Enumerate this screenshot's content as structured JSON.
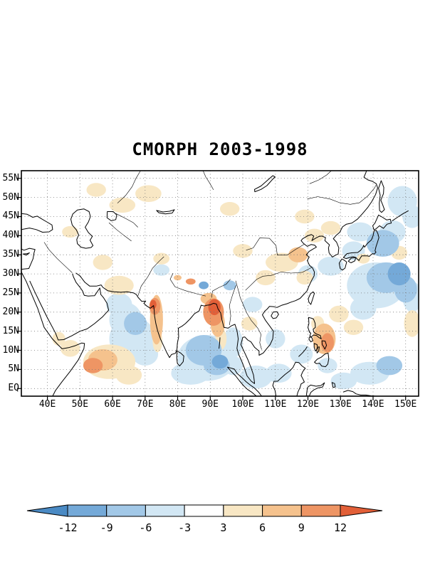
{
  "chart_data": {
    "type": "heatmap",
    "title": "CMORPH 2003-1998",
    "x_axis": {
      "ticks": [
        "40E",
        "50E",
        "60E",
        "70E",
        "80E",
        "90E",
        "100E",
        "110E",
        "120E",
        "130E",
        "140E",
        "150E"
      ],
      "values": [
        40,
        50,
        60,
        70,
        80,
        90,
        100,
        110,
        120,
        130,
        140,
        150
      ],
      "range": [
        32,
        154
      ]
    },
    "y_axis": {
      "ticks": [
        "EQ",
        "5N",
        "10N",
        "15N",
        "20N",
        "25N",
        "30N",
        "35N",
        "40N",
        "45N",
        "50N",
        "55N"
      ],
      "values": [
        0,
        5,
        10,
        15,
        20,
        25,
        30,
        35,
        40,
        45,
        50,
        55
      ],
      "range": [
        -2,
        57
      ]
    },
    "colorbar": {
      "orientation": "horizontal",
      "arrow_ends": true,
      "levels": [
        -12,
        -9,
        -6,
        -3,
        3,
        6,
        9,
        12
      ],
      "labels": [
        "-12",
        "-9",
        "-6",
        "-3",
        "3",
        "6",
        "9",
        "12"
      ],
      "colors": [
        "#4a8ac4",
        "#74a9d8",
        "#a2c8e7",
        "#d2e7f4",
        "#ffffff",
        "#f8e7c4",
        "#f5c28d",
        "#ee9564",
        "#e25f38"
      ]
    },
    "shaded_regions_format": [
      "lon_deg_e",
      "lat_deg_n",
      "rx_deg",
      "ry_deg",
      "anomaly_value"
    ],
    "shaded_regions": [
      [
        66,
        13,
        7,
        6,
        -4
      ],
      [
        64,
        18,
        5,
        4.5,
        -4
      ],
      [
        67,
        17,
        3.5,
        3,
        -7
      ],
      [
        62,
        22,
        4,
        3,
        -4
      ],
      [
        70,
        9,
        4,
        3,
        -4
      ],
      [
        89,
        8,
        9,
        6,
        -4
      ],
      [
        88,
        10,
        5.5,
        4,
        -7
      ],
      [
        92,
        6,
        4,
        2.5,
        -7
      ],
      [
        93,
        7,
        2.5,
        1.8,
        -10
      ],
      [
        84,
        4,
        6,
        3,
        -4
      ],
      [
        97,
        12,
        3,
        4,
        -4
      ],
      [
        97,
        6,
        3,
        2.5,
        -4
      ],
      [
        104,
        3,
        5,
        3,
        -4
      ],
      [
        111,
        4,
        4,
        2.5,
        -4
      ],
      [
        110,
        13,
        3,
        2.5,
        -4
      ],
      [
        120,
        30,
        3,
        2.3,
        -4
      ],
      [
        127,
        32,
        4,
        2.5,
        -4
      ],
      [
        141,
        27,
        9,
        6,
        -4
      ],
      [
        144,
        29,
        6,
        4,
        -7
      ],
      [
        148,
        30,
        3.5,
        3,
        -10
      ],
      [
        150,
        26,
        3.5,
        3.5,
        -7
      ],
      [
        152,
        24,
        3,
        4,
        -4
      ],
      [
        137,
        21,
        4,
        3,
        -4
      ],
      [
        134,
        36,
        3.5,
        2.5,
        -4
      ],
      [
        136,
        41,
        4,
        2.5,
        -4
      ],
      [
        143,
        38,
        5,
        3.5,
        -7
      ],
      [
        146,
        41,
        4,
        3,
        -4
      ],
      [
        149,
        49,
        4.5,
        4,
        -4
      ],
      [
        152,
        45,
        3,
        3,
        -4
      ],
      [
        139,
        4,
        6,
        3,
        -4
      ],
      [
        145,
        6,
        4,
        2.5,
        -7
      ],
      [
        131,
        2,
        4,
        2.2,
        -4
      ],
      [
        103,
        22,
        3,
        2,
        -4
      ],
      [
        96,
        27,
        2,
        1.3,
        -7
      ],
      [
        88,
        27,
        1.5,
        1,
        -10
      ],
      [
        118,
        9,
        3.5,
        2.5,
        -4
      ],
      [
        126,
        6,
        3,
        2,
        -4
      ],
      [
        75,
        31,
        2.5,
        1.5,
        -4
      ],
      [
        73.5,
        18,
        2,
        6.5,
        7
      ],
      [
        73,
        21.5,
        1.7,
        2.2,
        10
      ],
      [
        72.5,
        22,
        1,
        1.2,
        13
      ],
      [
        73.8,
        12.5,
        1.5,
        3,
        4
      ],
      [
        91,
        20,
        3.2,
        3.6,
        10
      ],
      [
        91.3,
        21.3,
        1.9,
        2.1,
        13
      ],
      [
        92.3,
        17,
        2.2,
        3.5,
        7
      ],
      [
        93.3,
        13,
        1.7,
        2.8,
        4
      ],
      [
        89.5,
        23.5,
        2.5,
        1.5,
        7
      ],
      [
        59,
        7,
        8,
        4.5,
        4
      ],
      [
        57,
        7.5,
        4.5,
        2.8,
        7
      ],
      [
        54,
        6,
        3,
        2,
        10
      ],
      [
        65,
        3.5,
        4,
        2.5,
        4
      ],
      [
        47,
        10.5,
        3,
        2.2,
        4
      ],
      [
        43.5,
        13,
        2,
        1.8,
        4
      ],
      [
        62,
        27,
        4.5,
        2.5,
        4
      ],
      [
        57,
        33,
        3,
        2,
        4
      ],
      [
        75,
        34,
        2.5,
        1.5,
        4
      ],
      [
        112,
        33,
        5,
        2.5,
        4
      ],
      [
        117,
        35,
        3,
        2,
        7
      ],
      [
        107,
        29,
        3,
        2,
        4
      ],
      [
        119,
        29,
        2.5,
        1.8,
        4
      ],
      [
        100,
        36,
        3,
        1.8,
        4
      ],
      [
        122,
        40,
        3,
        1.8,
        4
      ],
      [
        127,
        42,
        3,
        1.8,
        4
      ],
      [
        119,
        45,
        3,
        1.8,
        4
      ],
      [
        125,
        13,
        3.5,
        4,
        7
      ],
      [
        126,
        12,
        2,
        2.5,
        10
      ],
      [
        123,
        17,
        2,
        2,
        4
      ],
      [
        129.5,
        19.5,
        3,
        2.2,
        4
      ],
      [
        134,
        16,
        3,
        2,
        4
      ],
      [
        152,
        17,
        2.5,
        3.5,
        4
      ],
      [
        137,
        34,
        2,
        1.3,
        4
      ],
      [
        148,
        35.5,
        2.5,
        1.8,
        4
      ],
      [
        84,
        28,
        1.5,
        0.8,
        10
      ],
      [
        80,
        29,
        1.2,
        0.7,
        7
      ],
      [
        63,
        48,
        4,
        2,
        4
      ],
      [
        71,
        51,
        4,
        2.2,
        4
      ],
      [
        55,
        52,
        3,
        1.8,
        4
      ],
      [
        47,
        41,
        2.5,
        1.5,
        4
      ],
      [
        96,
        47,
        3,
        1.8,
        4
      ],
      [
        102,
        17,
        2.5,
        1.8,
        4
      ]
    ]
  }
}
